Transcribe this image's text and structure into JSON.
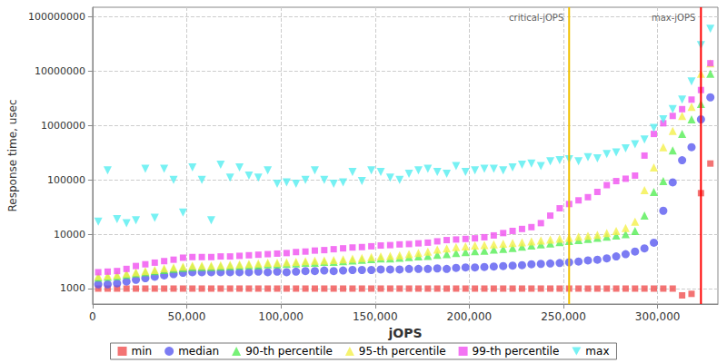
{
  "chart_data": {
    "type": "scatter",
    "x_label": "jOPS",
    "y_label": "Response time, usec",
    "log": "y",
    "grid": true,
    "legend": "bottom",
    "xlim": [
      0,
      332000
    ],
    "xticks": [
      0,
      {
        "value": 50000,
        "label": "50,000"
      },
      {
        "value": 100000,
        "label": "100,000"
      },
      {
        "value": 150000,
        "label": "150,000"
      },
      {
        "value": 200000,
        "label": "200,000"
      },
      {
        "value": 250000,
        "label": "250,000"
      },
      {
        "value": 300000,
        "label": "300,000"
      }
    ],
    "ylim": [
      520,
      150000000
    ],
    "yticks": [
      1000,
      10000,
      100000,
      1000000,
      10000000,
      100000000
    ],
    "x": [
      3000,
      8000,
      13000,
      18000,
      23000,
      28000,
      33000,
      38000,
      43000,
      48000,
      53000,
      58000,
      63000,
      68000,
      73000,
      78000,
      83000,
      88000,
      93000,
      98000,
      103000,
      108000,
      113000,
      118000,
      123000,
      128000,
      133000,
      138000,
      143000,
      148000,
      153000,
      158000,
      163000,
      168000,
      173000,
      178000,
      183000,
      188000,
      193000,
      198000,
      203000,
      208000,
      213000,
      218000,
      223000,
      228000,
      233000,
      238000,
      243000,
      248000,
      253000,
      258000,
      263000,
      268000,
      273000,
      278000,
      283000,
      288000,
      293000,
      298000,
      303000,
      308000,
      313000,
      318000,
      323000,
      328000
    ],
    "series": [
      {
        "name": "min",
        "color": "#f05050",
        "marker": "square",
        "values": [
          1000,
          1000,
          1000,
          1000,
          1000,
          1000,
          1000,
          1000,
          1000,
          1000,
          1000,
          1000,
          1000,
          1000,
          1000,
          1000,
          1000,
          1000,
          1000,
          1000,
          1000,
          1000,
          1000,
          1000,
          1000,
          1000,
          1000,
          1000,
          1000,
          1000,
          1000,
          1000,
          1000,
          1000,
          1000,
          1000,
          1000,
          1000,
          1000,
          1000,
          1000,
          1000,
          1000,
          1000,
          1000,
          1000,
          1000,
          1000,
          1000,
          1000,
          1000,
          1000,
          1000,
          1000,
          1000,
          1000,
          1000,
          1000,
          1000,
          1000,
          1000,
          1000,
          750,
          800,
          57000,
          200000
        ]
      },
      {
        "name": "median",
        "color": "#5a5af0",
        "marker": "circle",
        "values": [
          1200,
          1200,
          1250,
          1350,
          1450,
          1550,
          1650,
          1750,
          1850,
          1950,
          2000,
          2000,
          2000,
          2000,
          2000,
          2000,
          2000,
          2050,
          2000,
          2050,
          2000,
          2050,
          2100,
          2100,
          2150,
          2100,
          2150,
          2200,
          2200,
          2200,
          2250,
          2250,
          2250,
          2300,
          2300,
          2300,
          2350,
          2300,
          2400,
          2450,
          2450,
          2500,
          2550,
          2600,
          2650,
          2700,
          2800,
          2850,
          2900,
          2950,
          3050,
          3150,
          3300,
          3400,
          3600,
          3900,
          4300,
          4800,
          5500,
          7000,
          27000,
          90000,
          230000,
          400000,
          1300000,
          3300000
        ]
      },
      {
        "name": "90-th percentile",
        "color": "#55ee55",
        "marker": "triangle",
        "values": [
          1600,
          1650,
          1700,
          1800,
          1900,
          2000,
          2100,
          2200,
          2300,
          2400,
          2500,
          2500,
          2500,
          2550,
          2600,
          2650,
          2700,
          2700,
          2800,
          2800,
          2850,
          2900,
          3000,
          3000,
          3100,
          3100,
          3200,
          3300,
          3400,
          3500,
          3600,
          3600,
          3700,
          3800,
          3900,
          4000,
          4200,
          4300,
          4500,
          4700,
          4900,
          5000,
          5200,
          5400,
          5600,
          5900,
          6200,
          6500,
          6800,
          7200,
          7500,
          7800,
          8200,
          8600,
          9000,
          9500,
          10000,
          11500,
          22000,
          60000,
          95000,
          350000,
          700000,
          1300000,
          2500000,
          9000000
        ]
      },
      {
        "name": "95-th percentile",
        "color": "#f4f04a",
        "marker": "triangle",
        "values": [
          1700,
          1750,
          1800,
          1900,
          2000,
          2100,
          2200,
          2350,
          2450,
          2550,
          2650,
          2650,
          2650,
          2700,
          2750,
          2800,
          2850,
          2900,
          3000,
          3000,
          3050,
          3100,
          3200,
          3250,
          3300,
          3350,
          3450,
          3550,
          3650,
          3800,
          3900,
          4000,
          4100,
          4300,
          4500,
          4800,
          5200,
          5500,
          5800,
          6000,
          6200,
          6300,
          6500,
          6700,
          6900,
          7100,
          7400,
          7700,
          8000,
          8300,
          8600,
          9000,
          9400,
          9800,
          10500,
          11500,
          13000,
          17000,
          65000,
          170000,
          400000,
          800000,
          1500000,
          2200000,
          9000000,
          14000000
        ]
      },
      {
        "name": "99-th percentile",
        "color": "#f050f0",
        "marker": "square",
        "values": [
          2000,
          2050,
          2100,
          2300,
          2600,
          2800,
          3000,
          3200,
          3400,
          3700,
          3800,
          3800,
          3800,
          3900,
          3900,
          4000,
          4100,
          4200,
          4300,
          4400,
          4500,
          4700,
          4800,
          5000,
          5100,
          5300,
          5500,
          5700,
          5800,
          6000,
          6200,
          6300,
          6500,
          6600,
          6800,
          7000,
          7400,
          7800,
          8000,
          8200,
          8400,
          8800,
          9500,
          10500,
          11500,
          12500,
          13500,
          16000,
          22000,
          30000,
          36000,
          42000,
          48000,
          60000,
          80000,
          95000,
          105000,
          120000,
          280000,
          700000,
          1100000,
          1500000,
          2000000,
          3000000,
          4500000,
          14000000
        ]
      },
      {
        "name": "max",
        "color": "#55eef0",
        "marker": "triangle_down",
        "values": [
          17000,
          150000,
          19000,
          16000,
          18000,
          160000,
          20000,
          160000,
          100000,
          25000,
          170000,
          100000,
          18000,
          190000,
          110000,
          170000,
          120000,
          110000,
          150000,
          85000,
          90000,
          85000,
          100000,
          150000,
          100000,
          85000,
          90000,
          140000,
          95000,
          150000,
          140000,
          110000,
          100000,
          130000,
          150000,
          160000,
          140000,
          130000,
          180000,
          140000,
          150000,
          160000,
          160000,
          150000,
          170000,
          190000,
          200000,
          180000,
          220000,
          230000,
          240000,
          220000,
          260000,
          250000,
          300000,
          320000,
          380000,
          450000,
          550000,
          900000,
          1300000,
          2000000,
          3000000,
          6500000,
          30000000,
          60000000
        ]
      }
    ],
    "annotations": [
      {
        "text": "critical-jOPS",
        "x": 253000,
        "color": "#f0c000"
      },
      {
        "text": "max-jOPS",
        "x": 323000,
        "color": "#ff0000"
      }
    ]
  }
}
